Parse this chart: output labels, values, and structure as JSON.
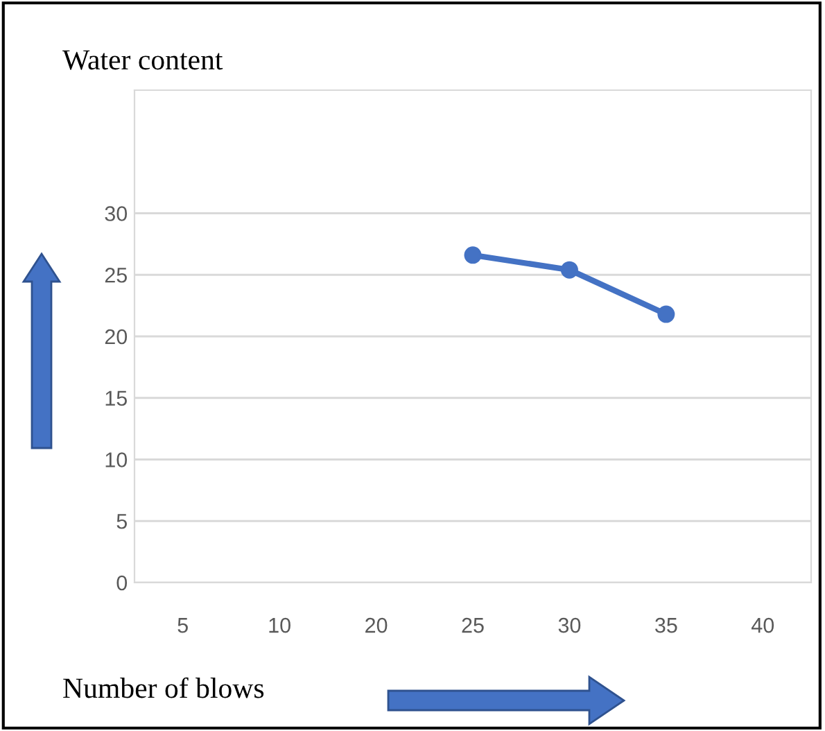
{
  "chart_data": {
    "type": "line",
    "title": "Water content",
    "xlabel": "Number of blows",
    "categories": [
      "5",
      "10",
      "20",
      "25",
      "30",
      "35",
      "40"
    ],
    "series": [
      {
        "color": "#4472c4",
        "values": [
          null,
          null,
          null,
          26.6,
          25.4,
          21.8,
          null
        ]
      }
    ],
    "ylim": [
      0,
      40
    ],
    "yticks": [
      0,
      5,
      10,
      15,
      20,
      25,
      30
    ],
    "grid": "y",
    "marker": "circle",
    "line_style": "solid"
  }
}
